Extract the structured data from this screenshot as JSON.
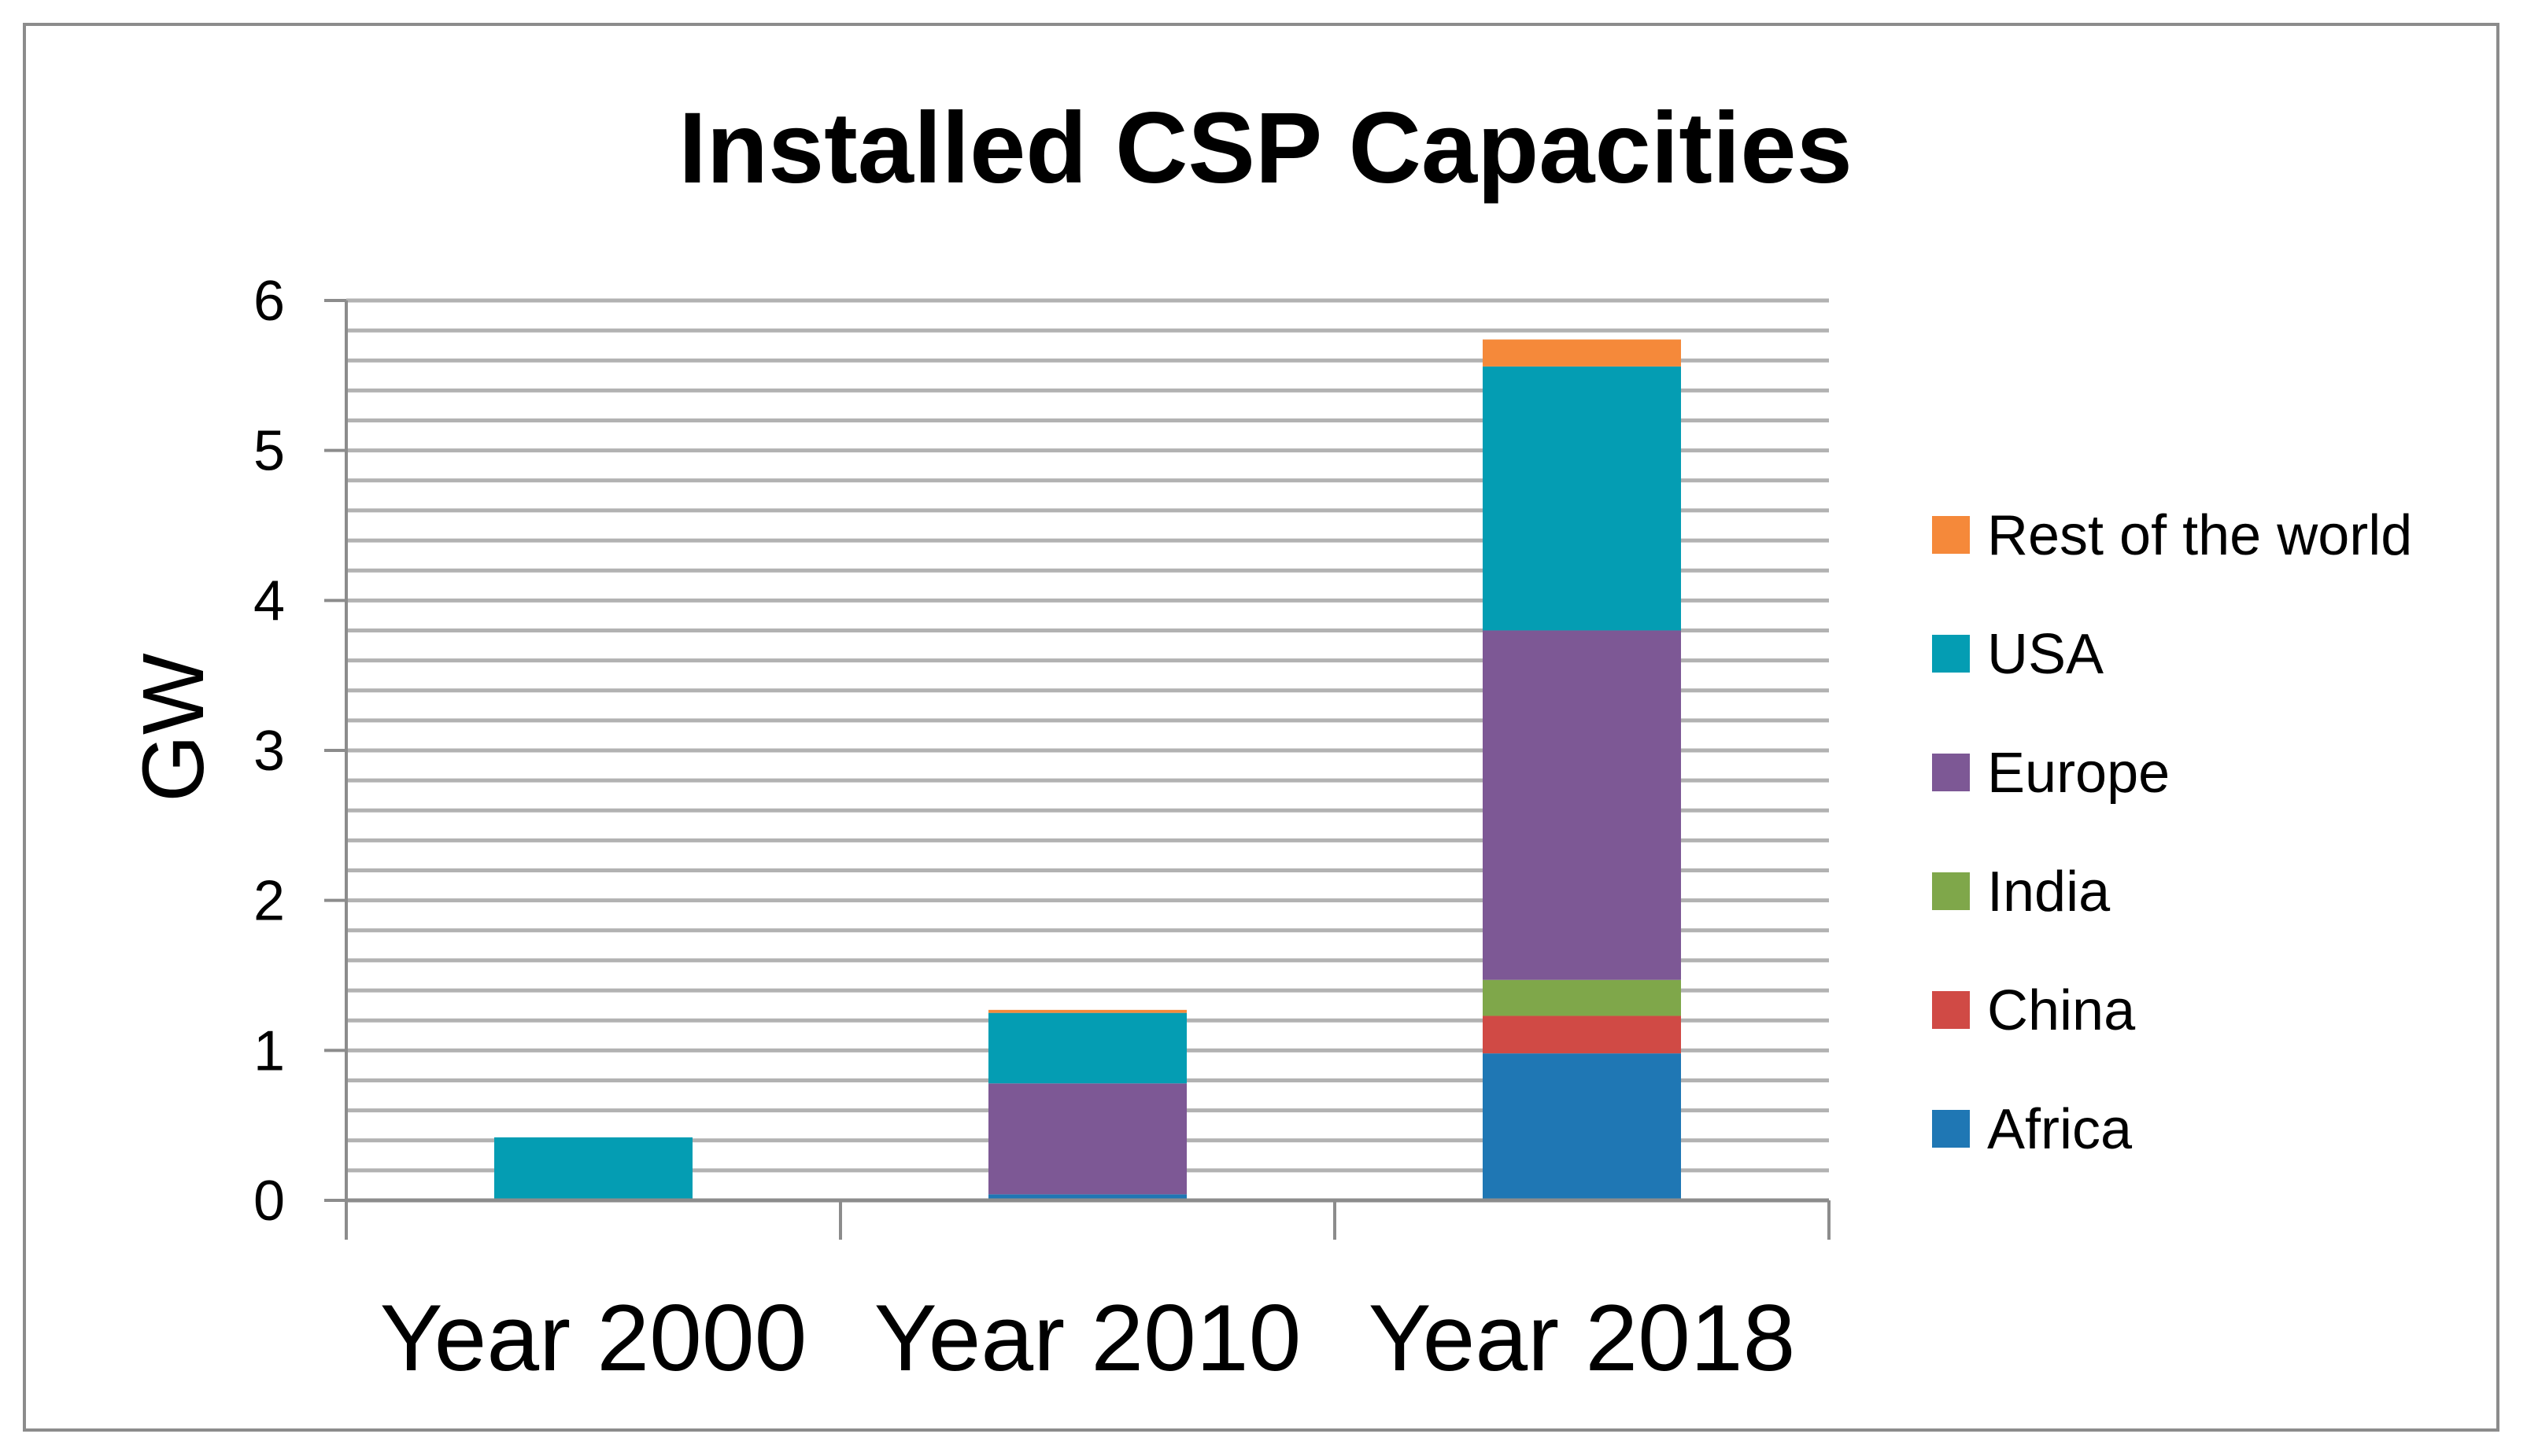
{
  "chart_data": {
    "type": "bar",
    "stacked": true,
    "title": "Installed CSP Capacities",
    "xlabel": "",
    "ylabel": "GW",
    "ylim": [
      0,
      6
    ],
    "yticks": [
      "0",
      "1",
      "2",
      "3",
      "4",
      "5",
      "6"
    ],
    "grid": true,
    "legend_position": "right",
    "categories": [
      "Year 2000",
      "Year 2010",
      "Year 2018"
    ],
    "series": [
      {
        "name": "Africa",
        "color": "#1F77B4",
        "values": [
          0.0,
          0.04,
          0.98
        ]
      },
      {
        "name": "China",
        "color": "#D04A45",
        "values": [
          0.0,
          0.0,
          0.25
        ]
      },
      {
        "name": "India",
        "color": "#7FA74A",
        "values": [
          0.0,
          0.0,
          0.24
        ]
      },
      {
        "name": "Europe",
        "color": "#7D5895",
        "values": [
          0.0,
          0.74,
          2.33
        ]
      },
      {
        "name": "USA",
        "color": "#049DB3",
        "values": [
          0.42,
          0.47,
          1.76
        ]
      },
      {
        "name": "Rest of the world",
        "color": "#F5893A",
        "values": [
          0.0,
          0.02,
          0.18
        ]
      }
    ]
  }
}
